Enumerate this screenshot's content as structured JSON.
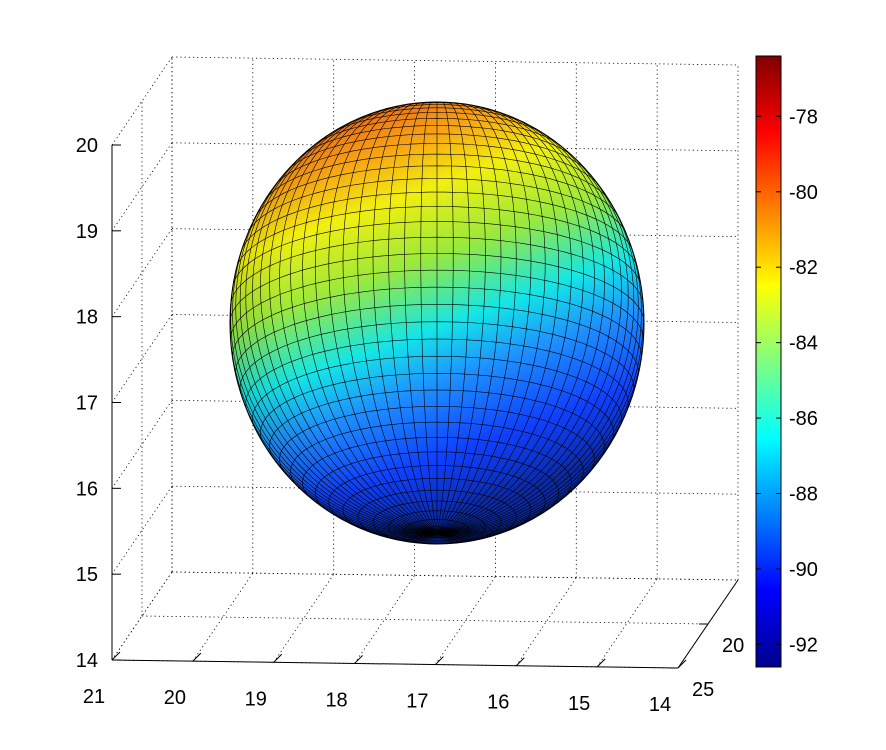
{
  "chart_data": {
    "type": "surface",
    "surface": "sphere",
    "colormap": "jet",
    "title": "",
    "xlabel": "",
    "ylabel": "",
    "zlabel": "",
    "x_ticks": [
      "21",
      "20",
      "19",
      "18",
      "17",
      "16",
      "15",
      "14"
    ],
    "y_ticks": [
      "25",
      "20"
    ],
    "z_ticks": [
      "14",
      "15",
      "16",
      "17",
      "18",
      "19",
      "20"
    ],
    "xlim": [
      14,
      21
    ],
    "ylim": [
      15,
      25
    ],
    "zlim": [
      14,
      20
    ],
    "sphere_center": {
      "x": 17.5,
      "y": 20,
      "z": 17.5
    },
    "sphere_radius": 2.5,
    "color_range": [
      -92.6,
      -76.4
    ],
    "color_gradient": "values increase from bottom of sphere to top-left",
    "colorbar": {
      "ticks": [
        "-78",
        "-80",
        "-82",
        "-84",
        "-86",
        "-88",
        "-90",
        "-92"
      ],
      "values": [
        -78,
        -80,
        -82,
        -84,
        -86,
        -88,
        -90,
        -92
      ],
      "location": "right"
    },
    "grid": true,
    "box": "dotted"
  }
}
